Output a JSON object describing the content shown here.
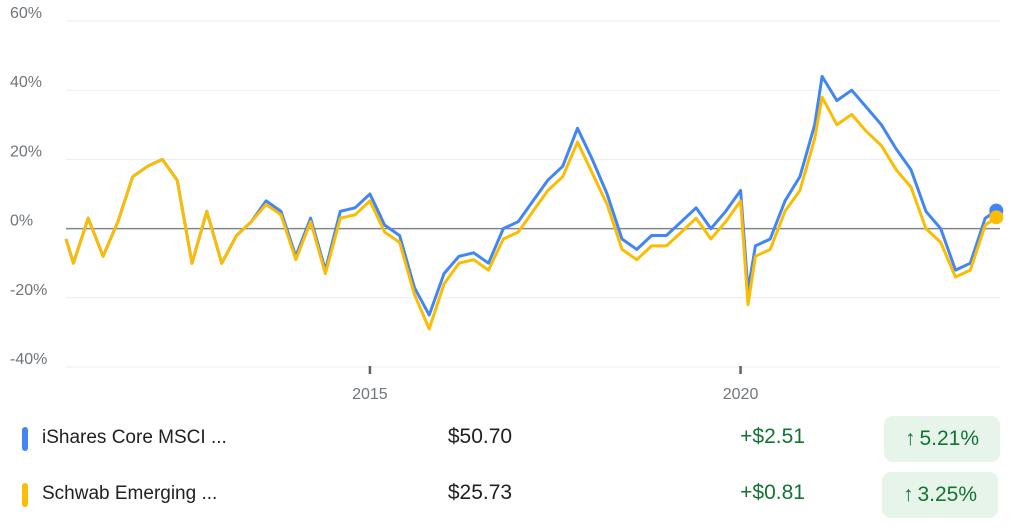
{
  "chart_data": {
    "type": "line",
    "x_range": [
      2010.9,
      2023.5
    ],
    "ylim": [
      -40,
      60
    ],
    "y_ticks": [
      "60%",
      "40%",
      "20%",
      "0%",
      "-20%",
      "-40%"
    ],
    "y_tick_values": [
      60,
      40,
      20,
      0,
      -20,
      -40
    ],
    "x_ticks": [
      "2015",
      "2020"
    ],
    "x_tick_values": [
      2015,
      2020
    ],
    "grid": true,
    "baseline": 0,
    "series": [
      {
        "name": "iShares Core MSCI ...",
        "color": "#4285f4",
        "x": [
          2010.9,
          2011.0,
          2011.2,
          2011.4,
          2011.6,
          2011.8,
          2012.0,
          2012.2,
          2012.4,
          2012.6,
          2012.8,
          2013.0,
          2013.2,
          2013.4,
          2013.6,
          2013.8,
          2014.0,
          2014.2,
          2014.4,
          2014.6,
          2014.8,
          2015.0,
          2015.2,
          2015.4,
          2015.6,
          2015.8,
          2016.0,
          2016.2,
          2016.4,
          2016.6,
          2016.8,
          2017.0,
          2017.2,
          2017.4,
          2017.6,
          2017.8,
          2018.0,
          2018.2,
          2018.4,
          2018.6,
          2018.8,
          2019.0,
          2019.2,
          2019.4,
          2019.6,
          2019.8,
          2020.0,
          2020.1,
          2020.2,
          2020.4,
          2020.6,
          2020.8,
          2021.0,
          2021.1,
          2021.3,
          2021.5,
          2021.7,
          2021.9,
          2022.1,
          2022.3,
          2022.5,
          2022.7,
          2022.9,
          2023.1,
          2023.3,
          2023.45
        ],
        "values": [
          -3,
          -10,
          3,
          -8,
          2,
          15,
          18,
          20,
          14,
          -10,
          5,
          -10,
          -2,
          2,
          8,
          5,
          -8,
          3,
          -12,
          5,
          6,
          10,
          1,
          -2,
          -17,
          -25,
          -13,
          -8,
          -7,
          -10,
          0,
          2,
          8,
          14,
          18,
          29,
          20,
          10,
          -3,
          -6,
          -2,
          -2,
          2,
          6,
          0,
          5,
          11,
          -18,
          -5,
          -3,
          8,
          15,
          30,
          44,
          37,
          40,
          35,
          30,
          23,
          17,
          5,
          0,
          -12,
          -10,
          3,
          5.21
        ]
      },
      {
        "name": "Schwab Emerging ...",
        "color": "#fbbc04",
        "x": [
          2010.9,
          2011.0,
          2011.2,
          2011.4,
          2011.6,
          2011.8,
          2012.0,
          2012.2,
          2012.4,
          2012.6,
          2012.8,
          2013.0,
          2013.2,
          2013.4,
          2013.6,
          2013.8,
          2014.0,
          2014.2,
          2014.4,
          2014.6,
          2014.8,
          2015.0,
          2015.2,
          2015.4,
          2015.6,
          2015.8,
          2016.0,
          2016.2,
          2016.4,
          2016.6,
          2016.8,
          2017.0,
          2017.2,
          2017.4,
          2017.6,
          2017.8,
          2018.0,
          2018.2,
          2018.4,
          2018.6,
          2018.8,
          2019.0,
          2019.2,
          2019.4,
          2019.6,
          2019.8,
          2020.0,
          2020.1,
          2020.2,
          2020.4,
          2020.6,
          2020.8,
          2021.0,
          2021.1,
          2021.3,
          2021.5,
          2021.7,
          2021.9,
          2022.1,
          2022.3,
          2022.5,
          2022.7,
          2022.9,
          2023.1,
          2023.3,
          2023.45
        ],
        "values": [
          -3,
          -10,
          3,
          -8,
          2,
          15,
          18,
          20,
          14,
          -10,
          5,
          -10,
          -2,
          2,
          7,
          4,
          -9,
          2,
          -13,
          3,
          4,
          8,
          -1,
          -4,
          -19,
          -29,
          -16,
          -10,
          -9,
          -12,
          -3,
          -1,
          5,
          11,
          15,
          25,
          16,
          7,
          -6,
          -9,
          -5,
          -5,
          -1,
          3,
          -3,
          2,
          8,
          -22,
          -8,
          -6,
          5,
          11,
          26,
          38,
          30,
          33,
          28,
          24,
          17,
          12,
          0,
          -4,
          -14,
          -12,
          1,
          3.25
        ]
      }
    ]
  },
  "legend": [
    {
      "name": "iShares Core MSCI ...",
      "color": "#4285f4",
      "price": "$50.70",
      "change": "+$2.51",
      "arrow": "↑",
      "pct": "5.21%"
    },
    {
      "name": "Schwab Emerging ...",
      "color": "#fbbc04",
      "price": "$25.73",
      "change": "+$0.81",
      "arrow": "↑",
      "pct": "3.25%"
    }
  ]
}
